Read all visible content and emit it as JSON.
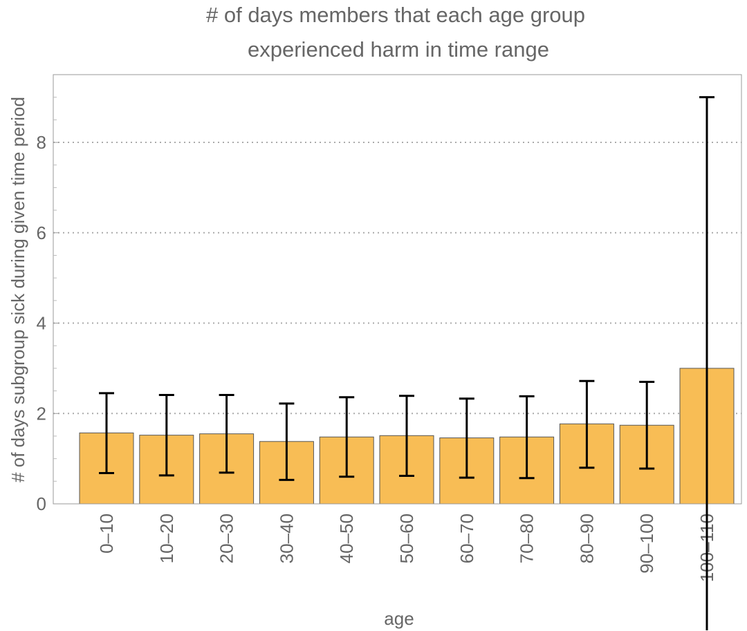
{
  "chart_data": {
    "type": "bar",
    "title_lines": [
      "# of days members that each age group",
      "experienced harm in time range"
    ],
    "xlabel": "age",
    "ylabel": "# of days subgroup sick during given time period",
    "categories": [
      "0–10",
      "10–20",
      "20–30",
      "30–40",
      "40–50",
      "50–60",
      "60–70",
      "70–80",
      "80–90",
      "90–100",
      "100–110"
    ],
    "values": [
      1.57,
      1.52,
      1.55,
      1.38,
      1.48,
      1.51,
      1.46,
      1.48,
      1.77,
      1.74,
      3.0
    ],
    "error_low": [
      0.68,
      0.63,
      0.69,
      0.53,
      0.6,
      0.62,
      0.58,
      0.57,
      0.8,
      0.78,
      -2.8
    ],
    "error_high": [
      2.45,
      2.41,
      2.41,
      2.22,
      2.36,
      2.39,
      2.33,
      2.38,
      2.72,
      2.7,
      9.0
    ],
    "yticks": [
      0,
      2,
      4,
      6,
      8
    ],
    "ylim": [
      0,
      9.5
    ],
    "grid": "horizontal dotted",
    "bar_color": "#f8bd55",
    "bar_edge_color": "#555555",
    "error_color": "#000000"
  }
}
